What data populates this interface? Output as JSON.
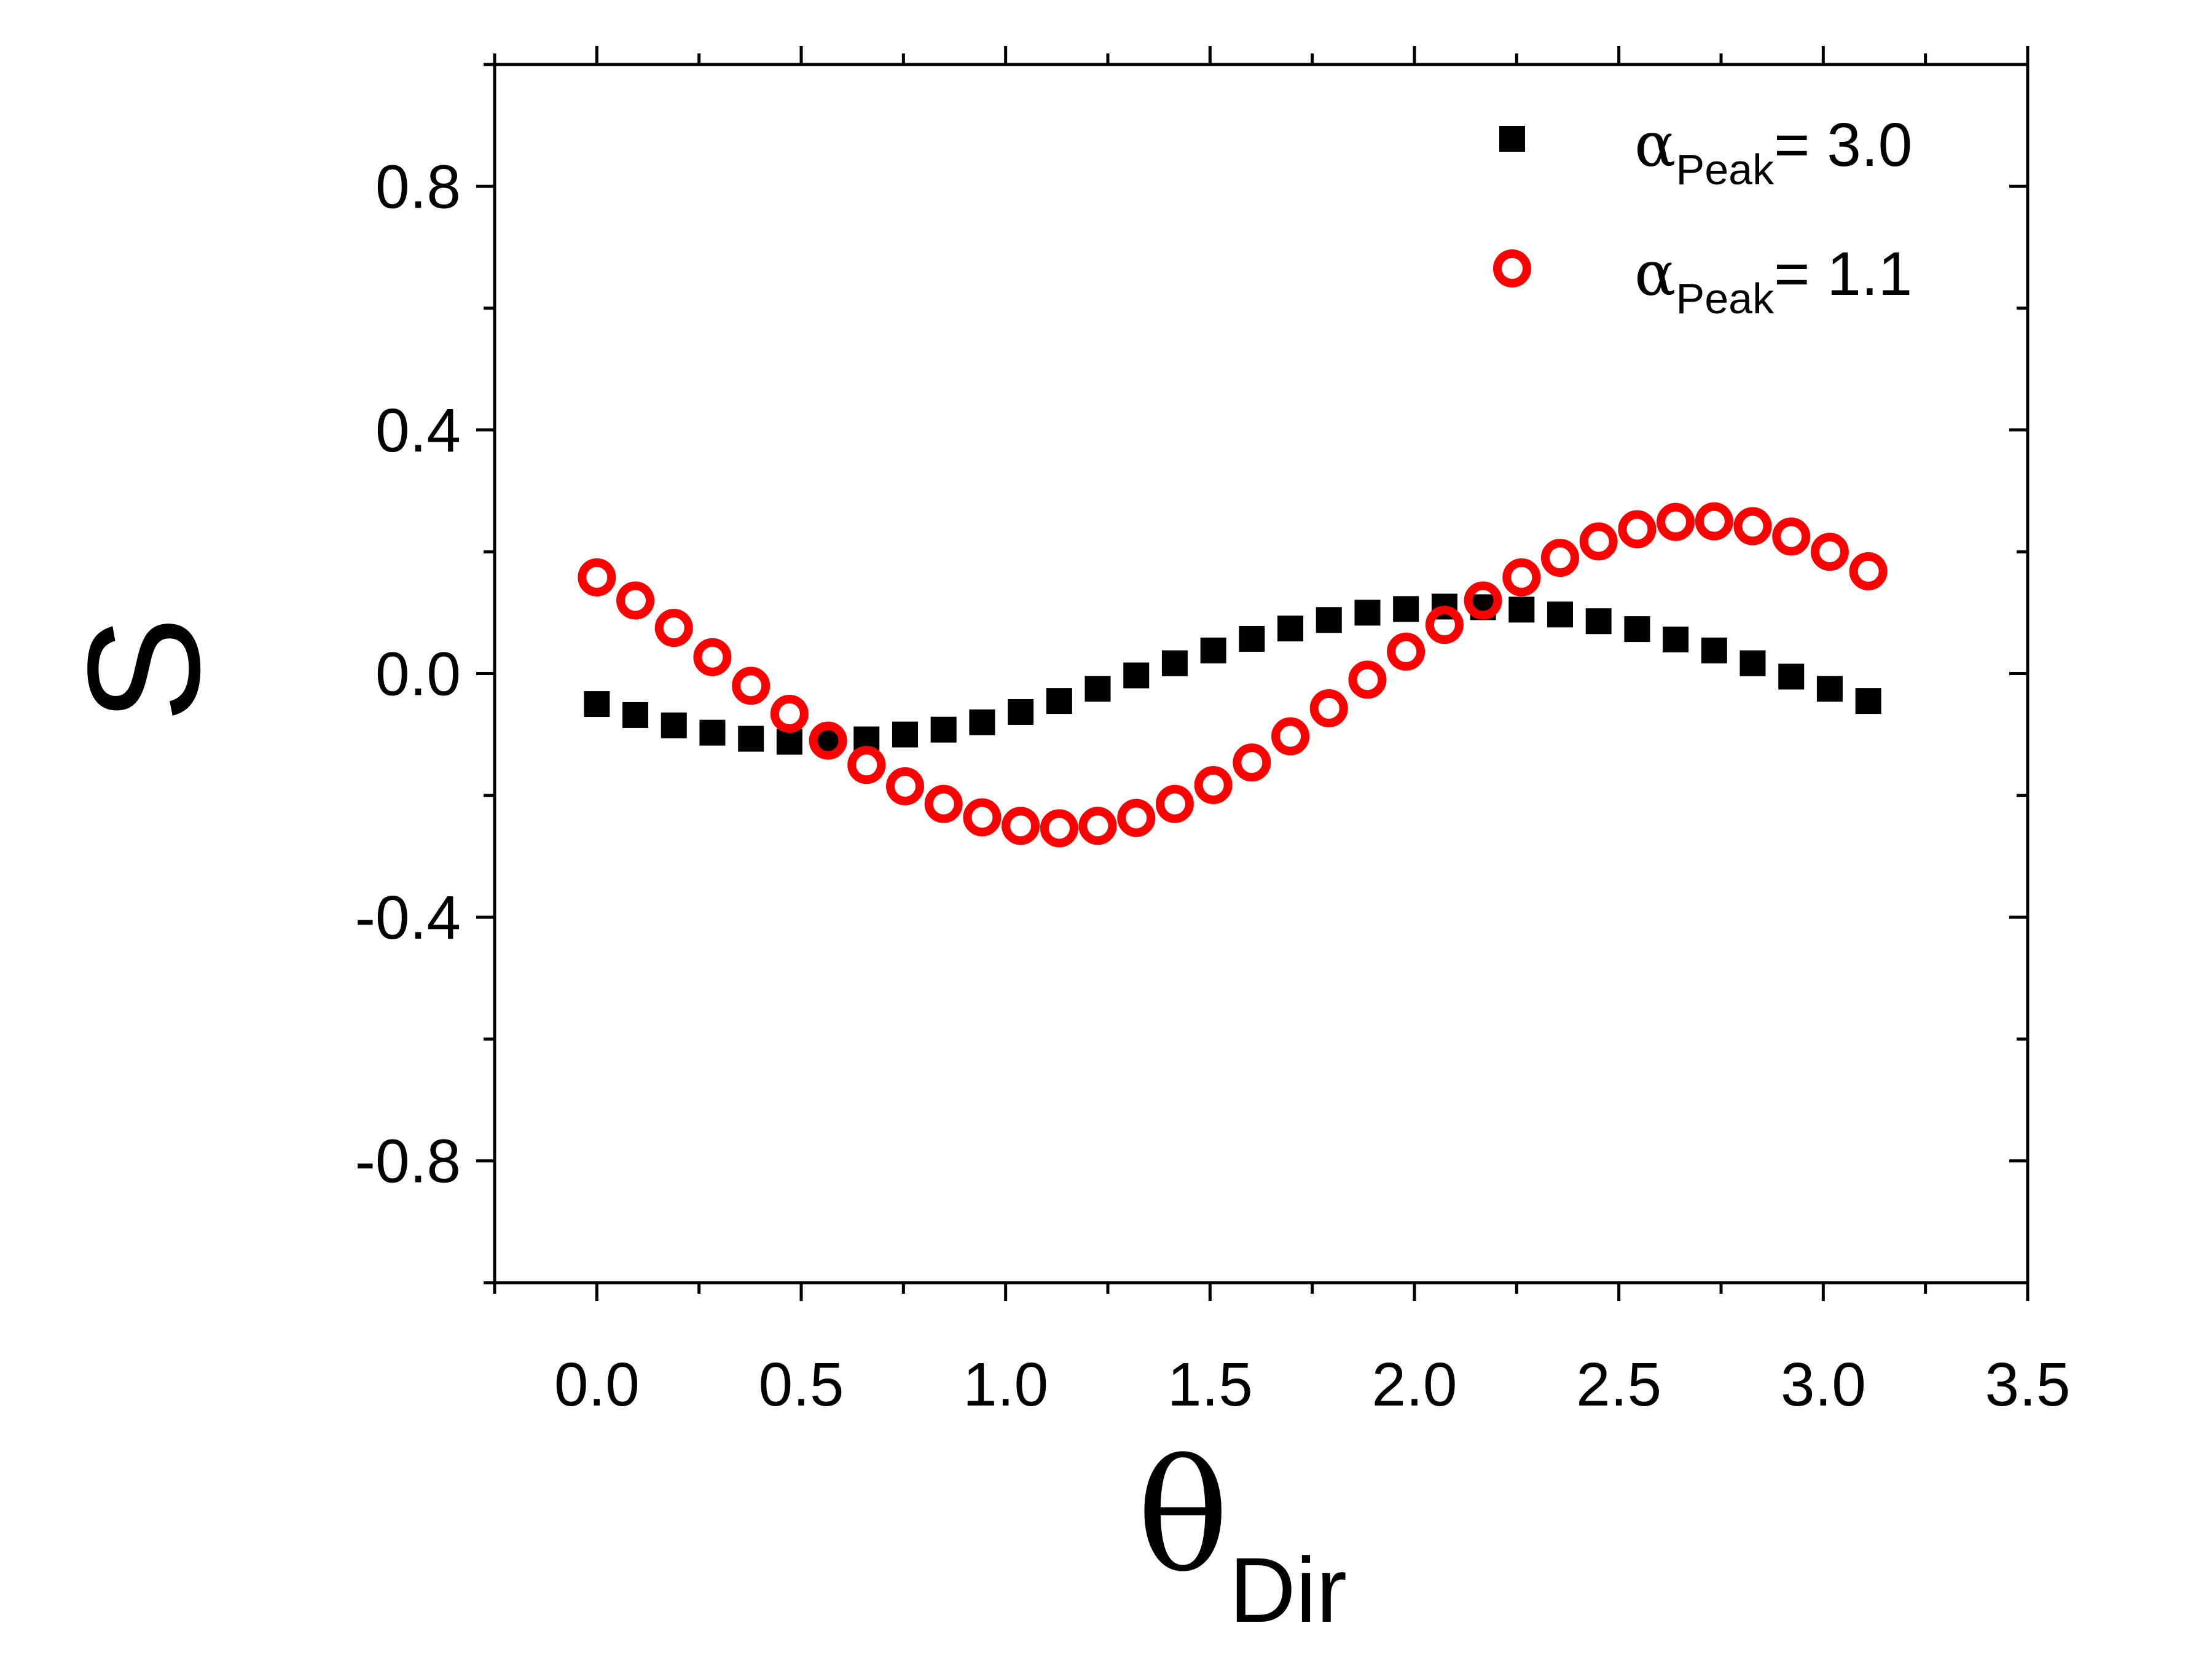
{
  "chart_data": {
    "type": "scatter",
    "xlabel": {
      "symbol": "θ",
      "subscript": "Dir"
    },
    "ylabel": "S",
    "xlim": [
      -0.25,
      3.5
    ],
    "ylim": [
      -1.0,
      1.0
    ],
    "xticks": [
      0.0,
      0.5,
      1.0,
      1.5,
      2.0,
      2.5,
      3.0,
      3.5
    ],
    "xtick_labels": [
      "0.0",
      "0.5",
      "1.0",
      "1.5",
      "2.0",
      "2.5",
      "3.0",
      "3.5"
    ],
    "yticks": [
      -0.8,
      -0.4,
      0.0,
      0.4,
      0.8
    ],
    "ytick_labels": [
      "-0.8",
      "-0.4",
      "0.0",
      "0.4",
      "0.8"
    ],
    "legend_position": "top-right",
    "grid": false,
    "series": [
      {
        "name": "α_Peak = 3.0",
        "legend": {
          "symbol": "α",
          "subscript": "Peak",
          "suffix": "= 3.0"
        },
        "marker": "filled-square",
        "color": "#000000",
        "x": [
          0.0,
          0.0942,
          0.1885,
          0.2827,
          0.377,
          0.4712,
          0.5655,
          0.6597,
          0.754,
          0.8482,
          0.9425,
          1.0367,
          1.131,
          1.2252,
          1.3195,
          1.4137,
          1.508,
          1.6022,
          1.6965,
          1.7907,
          1.885,
          1.9792,
          2.0735,
          2.1677,
          2.262,
          2.3562,
          2.4504,
          2.5447,
          2.6389,
          2.7332,
          2.8274,
          2.9217,
          3.0159,
          3.1102
        ],
        "y": [
          -0.05,
          -0.068,
          -0.085,
          -0.097,
          -0.107,
          -0.112,
          -0.112,
          -0.108,
          -0.1,
          -0.092,
          -0.08,
          -0.063,
          -0.045,
          -0.025,
          -0.003,
          0.017,
          0.038,
          0.057,
          0.074,
          0.088,
          0.1,
          0.106,
          0.11,
          0.109,
          0.105,
          0.097,
          0.086,
          0.073,
          0.056,
          0.038,
          0.017,
          -0.005,
          -0.025,
          -0.045
        ]
      },
      {
        "name": "α_Peak = 1.1",
        "legend": {
          "symbol": "α",
          "subscript": "Peak",
          "suffix": "= 1.1"
        },
        "marker": "open-circle",
        "color": "#ff0000",
        "x": [
          0.0,
          0.0942,
          0.1885,
          0.2827,
          0.377,
          0.4712,
          0.5655,
          0.6597,
          0.754,
          0.8482,
          0.9425,
          1.0367,
          1.131,
          1.2252,
          1.3195,
          1.4137,
          1.508,
          1.6022,
          1.6965,
          1.7907,
          1.885,
          1.9792,
          2.0735,
          2.1677,
          2.262,
          2.3562,
          2.4504,
          2.5447,
          2.6389,
          2.7332,
          2.8274,
          2.9217,
          3.0159,
          3.1102
        ],
        "y": [
          0.158,
          0.12,
          0.075,
          0.027,
          -0.02,
          -0.066,
          -0.11,
          -0.15,
          -0.185,
          -0.214,
          -0.236,
          -0.25,
          -0.254,
          -0.25,
          -0.237,
          -0.214,
          -0.183,
          -0.146,
          -0.103,
          -0.057,
          -0.01,
          0.036,
          0.08,
          0.12,
          0.158,
          0.19,
          0.217,
          0.237,
          0.249,
          0.25,
          0.242,
          0.225,
          0.2,
          0.168
        ]
      }
    ]
  }
}
